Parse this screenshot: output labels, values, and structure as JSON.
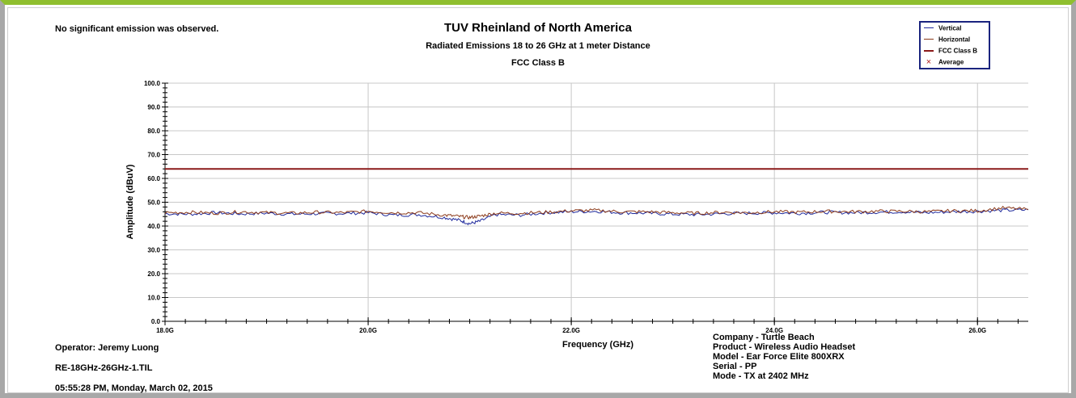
{
  "note": "No significant emission was observed.",
  "footer": {
    "operator": "Operator: Jeremy Luong",
    "file": "RE-18GHz-26GHz-1.TIL",
    "datetime": "05:55:28 PM, Monday, March 02, 2015"
  },
  "info": {
    "company": "Company - Turtle Beach",
    "product": "Product - Wireless Audio Headset",
    "model": "Model - Ear Force Elite 800XRX",
    "serial": "Serial - PP",
    "mode": "Mode - TX at 2402 MHz"
  },
  "colors": {
    "vertical": "#1f2a9c",
    "horizontal": "#8b3a1a",
    "limit": "#8b1a1a",
    "average": "#b22222",
    "grid": "#c8c8c8"
  },
  "chart_data": {
    "type": "line",
    "title": "TUV Rheinland of North America",
    "subtitle": "Radiated Emissions 18 to 26 GHz at 1 meter Distance",
    "subtitle2": "FCC Class B",
    "xlabel": "Frequency (GHz)",
    "ylabel": "Amplitude (dBuV)",
    "xlim": [
      18.0,
      26.5
    ],
    "ylim": [
      0.0,
      100.0
    ],
    "x_ticks": [
      18.0,
      20.0,
      22.0,
      24.0,
      26.0
    ],
    "x_tick_labels": [
      "18.0G",
      "20.0G",
      "22.0G",
      "24.0G",
      "26.0G"
    ],
    "y_ticks": [
      0,
      10,
      20,
      30,
      40,
      50,
      60,
      70,
      80,
      90,
      100
    ],
    "y_tick_labels": [
      "0.0",
      "10.0",
      "20.0",
      "30.0",
      "40.0",
      "50.0",
      "60.0",
      "70.0",
      "80.0",
      "90.0",
      "100.0"
    ],
    "legend": [
      "Vertical",
      "Horizontal",
      "FCC Class B",
      "Average"
    ],
    "legend_position": "top-right",
    "grid": true,
    "series": [
      {
        "name": "Vertical",
        "x": [
          18.0,
          18.25,
          18.5,
          18.75,
          19.0,
          19.25,
          19.5,
          19.75,
          20.0,
          20.25,
          20.5,
          20.75,
          20.9,
          21.0,
          21.1,
          21.25,
          21.5,
          21.75,
          22.0,
          22.25,
          22.5,
          22.75,
          23.0,
          23.25,
          23.5,
          23.75,
          24.0,
          24.25,
          24.5,
          24.75,
          25.0,
          25.25,
          25.5,
          25.75,
          26.0,
          26.25,
          26.5
        ],
        "y": [
          45.2,
          45.0,
          45.6,
          45.1,
          45.4,
          45.0,
          45.2,
          45.3,
          45.6,
          44.6,
          44.8,
          43.6,
          42.4,
          41.0,
          42.0,
          44.8,
          44.6,
          45.6,
          46.0,
          46.2,
          45.6,
          45.4,
          45.0,
          44.8,
          45.2,
          45.4,
          45.6,
          45.4,
          45.8,
          45.6,
          45.8,
          46.0,
          45.6,
          46.0,
          46.2,
          46.6,
          46.8
        ]
      },
      {
        "name": "Horizontal",
        "x": [
          18.0,
          18.25,
          18.5,
          18.75,
          19.0,
          19.25,
          19.5,
          19.75,
          20.0,
          20.25,
          20.5,
          20.75,
          20.9,
          21.0,
          21.1,
          21.25,
          21.5,
          21.75,
          22.0,
          22.25,
          22.5,
          22.75,
          23.0,
          23.25,
          23.5,
          23.75,
          24.0,
          24.25,
          24.5,
          24.75,
          25.0,
          25.25,
          25.5,
          25.75,
          26.0,
          26.25,
          26.5
        ],
        "y": [
          45.6,
          45.8,
          45.4,
          46.0,
          45.6,
          45.4,
          45.8,
          45.6,
          46.2,
          45.6,
          45.6,
          44.6,
          44.0,
          43.6,
          44.2,
          45.4,
          45.4,
          45.8,
          46.4,
          46.6,
          46.0,
          46.0,
          45.6,
          45.4,
          45.8,
          45.6,
          46.0,
          45.8,
          46.2,
          46.0,
          46.2,
          46.2,
          46.0,
          46.4,
          46.4,
          47.6,
          47.0
        ]
      },
      {
        "name": "FCC Class B",
        "x": [
          18.0,
          26.5
        ],
        "y": [
          64.0,
          64.0
        ]
      }
    ]
  }
}
